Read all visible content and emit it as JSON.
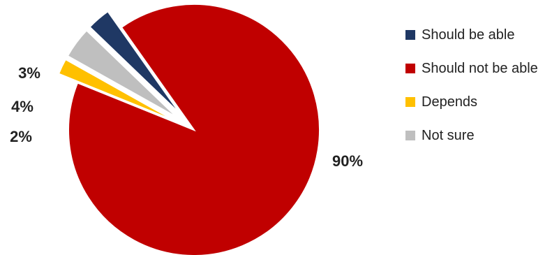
{
  "chart_data": {
    "type": "pie",
    "categories": [
      "Should be able",
      "Should not be able",
      "Depends",
      "Not sure"
    ],
    "values": [
      3,
      90,
      2,
      4
    ],
    "value_labels": [
      "3%",
      "90%",
      "2%",
      "4%"
    ],
    "colors": [
      "#1f3864",
      "#c00000",
      "#ffc000",
      "#bfbfbf"
    ],
    "exploded": [
      "Should be able",
      "Depends",
      "Not sure"
    ],
    "legend_position": "right"
  }
}
